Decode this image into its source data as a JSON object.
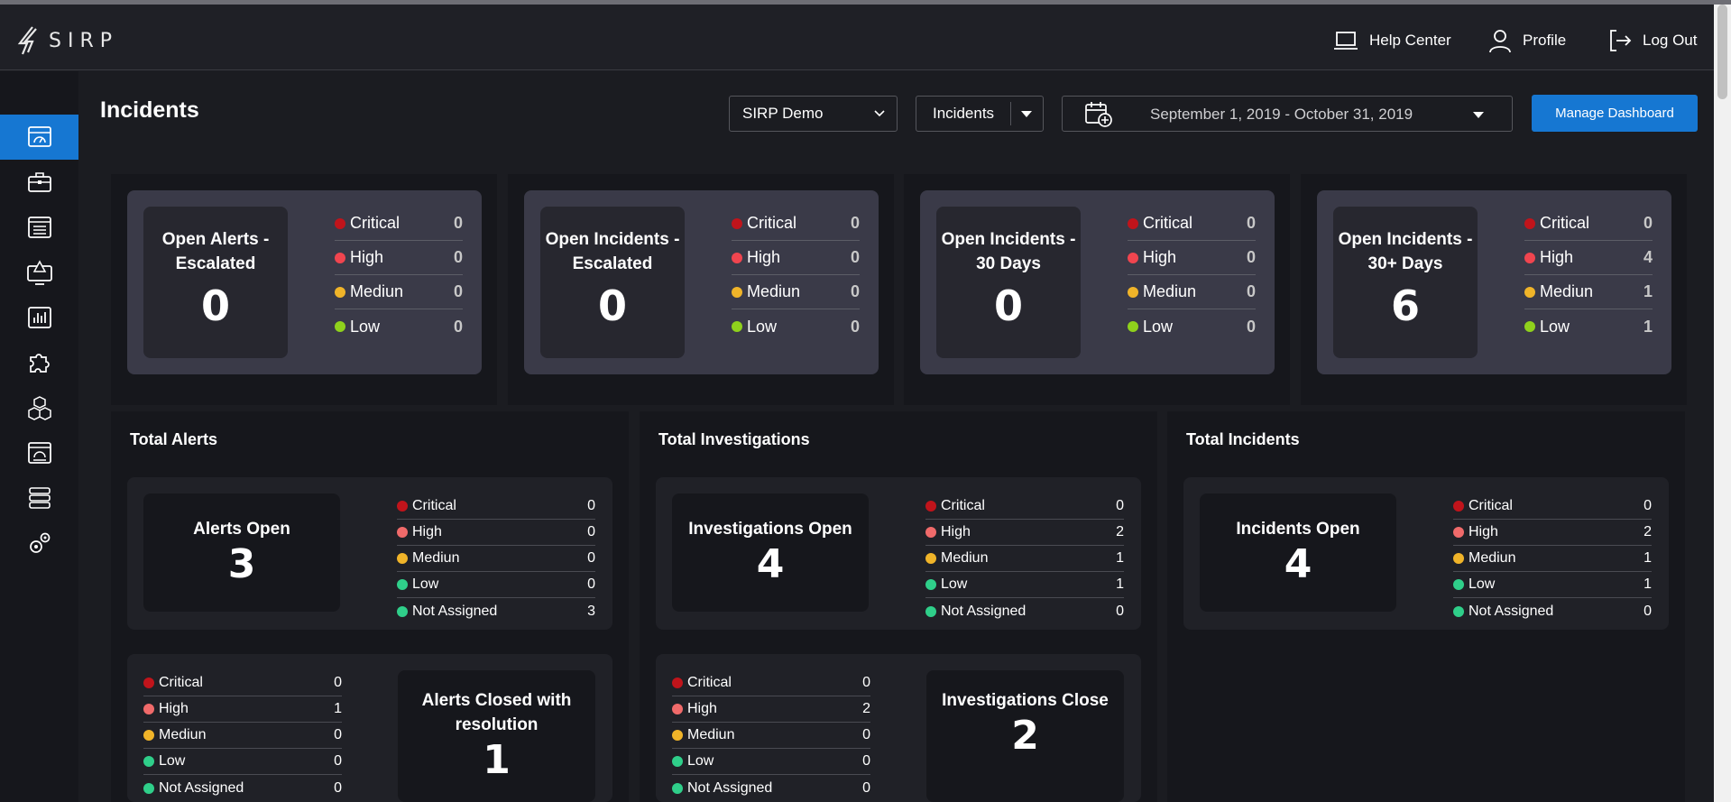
{
  "app": {
    "logo_text": "SIRP"
  },
  "topnav": {
    "help": "Help Center",
    "profile": "Profile",
    "logout": "Log Out"
  },
  "colors": {
    "accent": "#1677d2",
    "critical": "#c0141b",
    "high": "#f0454f",
    "high_list": "#f06a6a",
    "medium": "#f0b429",
    "low_top": "#8fd11c",
    "low": "#2fcf8a",
    "not_assigned": "#2fcf8a"
  },
  "header": {
    "title": "Incidents",
    "org_select": "SIRP Demo",
    "type_select": "Incidents",
    "date_range": "September 1, 2019 - October 31, 2019",
    "manage_button": "Manage Dashboard"
  },
  "sidebar": {
    "items": [
      {
        "icon": "dashboard-icon",
        "active": true
      },
      {
        "icon": "briefcase-icon",
        "active": false
      },
      {
        "icon": "list-icon",
        "active": false
      },
      {
        "icon": "monitor-alert-icon",
        "active": false
      },
      {
        "icon": "bar-chart-icon",
        "active": false
      },
      {
        "icon": "puzzle-icon",
        "active": false
      },
      {
        "icon": "cubes-icon",
        "active": false
      },
      {
        "icon": "gauge-panel-icon",
        "active": false
      },
      {
        "icon": "database-icon",
        "active": false
      },
      {
        "icon": "gears-icon",
        "active": false
      }
    ]
  },
  "summary_cards": [
    {
      "title_line1": "Open Alerts -",
      "title_line2": "Escalated",
      "value": "0",
      "rows": [
        {
          "label": "Critical",
          "value": "0"
        },
        {
          "label": "High",
          "value": "0"
        },
        {
          "label": "Mediun",
          "value": "0"
        },
        {
          "label": "Low",
          "value": "0"
        }
      ]
    },
    {
      "title_line1": "Open Incidents -",
      "title_line2": "Escalated",
      "value": "0",
      "rows": [
        {
          "label": "Critical",
          "value": "0"
        },
        {
          "label": "High",
          "value": "0"
        },
        {
          "label": "Mediun",
          "value": "0"
        },
        {
          "label": "Low",
          "value": "0"
        }
      ]
    },
    {
      "title_line1": "Open Incidents -",
      "title_line2": "30 Days",
      "value": "0",
      "rows": [
        {
          "label": "Critical",
          "value": "0"
        },
        {
          "label": "High",
          "value": "0"
        },
        {
          "label": "Mediun",
          "value": "0"
        },
        {
          "label": "Low",
          "value": "0"
        }
      ]
    },
    {
      "title_line1": "Open Incidents -",
      "title_line2": "30+ Days",
      "value": "6",
      "rows": [
        {
          "label": "Critical",
          "value": "0"
        },
        {
          "label": "High",
          "value": "4"
        },
        {
          "label": "Mediun",
          "value": "1"
        },
        {
          "label": "Low",
          "value": "1"
        }
      ]
    }
  ],
  "sections": {
    "alerts": {
      "title": "Total Alerts",
      "open": {
        "title": "Alerts Open",
        "value": "3",
        "rows": [
          {
            "label": "Critical",
            "value": "0"
          },
          {
            "label": "High",
            "value": "0"
          },
          {
            "label": "Mediun",
            "value": "0"
          },
          {
            "label": "Low",
            "value": "0"
          },
          {
            "label": "Not Assigned",
            "value": "3"
          }
        ]
      },
      "closed": {
        "title_line1": "Alerts Closed with",
        "title_line2": "resolution",
        "value": "1",
        "rows": [
          {
            "label": "Critical",
            "value": "0"
          },
          {
            "label": "High",
            "value": "1"
          },
          {
            "label": "Mediun",
            "value": "0"
          },
          {
            "label": "Low",
            "value": "0"
          },
          {
            "label": "Not Assigned",
            "value": "0"
          }
        ]
      }
    },
    "investigations": {
      "title": "Total Investigations",
      "open": {
        "title": "Investigations Open",
        "value": "4",
        "rows": [
          {
            "label": "Critical",
            "value": "0"
          },
          {
            "label": "High",
            "value": "2"
          },
          {
            "label": "Mediun",
            "value": "1"
          },
          {
            "label": "Low",
            "value": "1"
          },
          {
            "label": "Not Assigned",
            "value": "0"
          }
        ]
      },
      "closed": {
        "title": "Investigations Close",
        "value": "2",
        "rows": [
          {
            "label": "Critical",
            "value": "0"
          },
          {
            "label": "High",
            "value": "2"
          },
          {
            "label": "Mediun",
            "value": "0"
          },
          {
            "label": "Low",
            "value": "0"
          },
          {
            "label": "Not Assigned",
            "value": "0"
          }
        ]
      }
    },
    "incidents": {
      "title": "Total Incidents",
      "open": {
        "title": "Incidents Open",
        "value": "4",
        "rows": [
          {
            "label": "Critical",
            "value": "0"
          },
          {
            "label": "High",
            "value": "2"
          },
          {
            "label": "Mediun",
            "value": "1"
          },
          {
            "label": "Low",
            "value": "1"
          },
          {
            "label": "Not Assigned",
            "value": "0"
          }
        ]
      }
    }
  }
}
